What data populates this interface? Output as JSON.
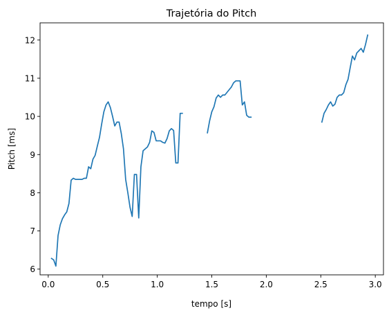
{
  "chart_data": {
    "type": "line",
    "title": "Trajetória do Pitch",
    "xlabel": "tempo [s]",
    "ylabel": "Pitch [ms]",
    "xlim": [
      -0.075,
      3.075
    ],
    "ylim": [
      5.85,
      12.45
    ],
    "x_ticks": [
      0.0,
      0.5,
      1.0,
      1.5,
      2.0,
      2.5,
      3.0
    ],
    "x_tick_labels": [
      "0.0",
      "0.5",
      "1.0",
      "1.5",
      "2.0",
      "2.5",
      "3.0"
    ],
    "y_ticks": [
      6,
      7,
      8,
      9,
      10,
      11,
      12
    ],
    "y_tick_labels": [
      "6",
      "7",
      "8",
      "9",
      "10",
      "11",
      "12"
    ],
    "grid": false,
    "line_color": "#1f77b4",
    "series": [
      {
        "segments": [
          [
            [
              0.03,
              6.28
            ],
            [
              0.05,
              6.24
            ],
            [
              0.07,
              6.08
            ],
            [
              0.09,
              6.88
            ],
            [
              0.11,
              7.16
            ],
            [
              0.13,
              7.32
            ],
            [
              0.15,
              7.42
            ],
            [
              0.17,
              7.5
            ],
            [
              0.19,
              7.72
            ],
            [
              0.21,
              8.33
            ],
            [
              0.23,
              8.38
            ],
            [
              0.25,
              8.35
            ],
            [
              0.27,
              8.35
            ],
            [
              0.29,
              8.35
            ],
            [
              0.31,
              8.35
            ],
            [
              0.33,
              8.38
            ],
            [
              0.35,
              8.38
            ],
            [
              0.37,
              8.68
            ],
            [
              0.39,
              8.63
            ],
            [
              0.41,
              8.88
            ],
            [
              0.43,
              8.98
            ],
            [
              0.45,
              9.22
            ],
            [
              0.47,
              9.45
            ],
            [
              0.49,
              9.8
            ],
            [
              0.51,
              10.12
            ],
            [
              0.53,
              10.3
            ],
            [
              0.55,
              10.38
            ],
            [
              0.57,
              10.23
            ],
            [
              0.59,
              10.0
            ],
            [
              0.61,
              9.75
            ],
            [
              0.63,
              9.85
            ],
            [
              0.65,
              9.85
            ],
            [
              0.67,
              9.55
            ],
            [
              0.69,
              9.15
            ],
            [
              0.71,
              8.35
            ],
            [
              0.73,
              8.0
            ],
            [
              0.75,
              7.62
            ],
            [
              0.77,
              7.38
            ],
            [
              0.79,
              8.48
            ],
            [
              0.81,
              8.48
            ],
            [
              0.83,
              7.34
            ],
            [
              0.85,
              8.68
            ],
            [
              0.87,
              9.1
            ],
            [
              0.89,
              9.15
            ],
            [
              0.91,
              9.2
            ],
            [
              0.93,
              9.32
            ],
            [
              0.95,
              9.62
            ],
            [
              0.97,
              9.58
            ],
            [
              0.99,
              9.36
            ],
            [
              1.01,
              9.36
            ],
            [
              1.03,
              9.36
            ],
            [
              1.05,
              9.32
            ],
            [
              1.07,
              9.3
            ],
            [
              1.09,
              9.42
            ],
            [
              1.11,
              9.62
            ],
            [
              1.13,
              9.68
            ],
            [
              1.15,
              9.63
            ],
            [
              1.17,
              8.78
            ],
            [
              1.19,
              8.78
            ],
            [
              1.21,
              10.08
            ],
            [
              1.23,
              10.08
            ]
          ],
          [
            [
              1.46,
              9.57
            ],
            [
              1.48,
              9.88
            ],
            [
              1.5,
              10.12
            ],
            [
              1.52,
              10.25
            ],
            [
              1.54,
              10.48
            ],
            [
              1.56,
              10.56
            ],
            [
              1.58,
              10.5
            ],
            [
              1.6,
              10.56
            ],
            [
              1.62,
              10.56
            ],
            [
              1.64,
              10.63
            ],
            [
              1.66,
              10.7
            ],
            [
              1.68,
              10.77
            ],
            [
              1.7,
              10.88
            ],
            [
              1.72,
              10.93
            ],
            [
              1.74,
              10.93
            ],
            [
              1.76,
              10.93
            ],
            [
              1.78,
              10.3
            ],
            [
              1.8,
              10.38
            ],
            [
              1.82,
              10.03
            ],
            [
              1.84,
              9.98
            ],
            [
              1.86,
              9.98
            ]
          ],
          [
            [
              2.51,
              9.85
            ],
            [
              2.53,
              10.08
            ],
            [
              2.55,
              10.18
            ],
            [
              2.57,
              10.3
            ],
            [
              2.59,
              10.38
            ],
            [
              2.61,
              10.27
            ],
            [
              2.63,
              10.32
            ],
            [
              2.65,
              10.5
            ],
            [
              2.67,
              10.56
            ],
            [
              2.69,
              10.56
            ],
            [
              2.71,
              10.62
            ],
            [
              2.73,
              10.83
            ],
            [
              2.75,
              10.97
            ],
            [
              2.77,
              11.28
            ],
            [
              2.79,
              11.58
            ],
            [
              2.81,
              11.48
            ],
            [
              2.83,
              11.66
            ],
            [
              2.85,
              11.72
            ],
            [
              2.87,
              11.78
            ],
            [
              2.89,
              11.68
            ],
            [
              2.91,
              11.88
            ],
            [
              2.93,
              12.13
            ]
          ]
        ]
      }
    ]
  }
}
